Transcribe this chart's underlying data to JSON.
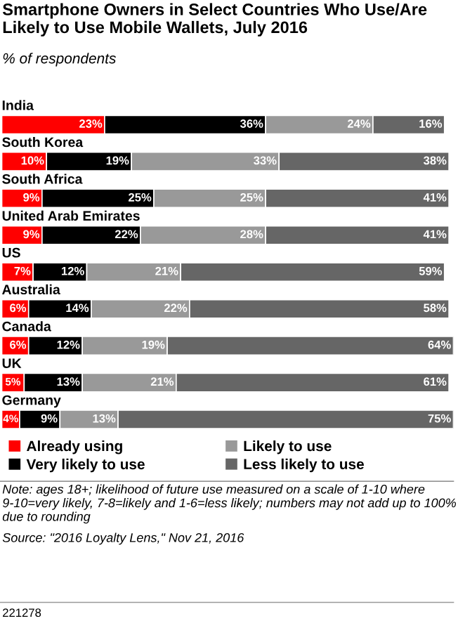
{
  "chart_data": {
    "type": "bar",
    "orientation": "horizontal",
    "stacked": true,
    "title": "Smartphone Owners in Select Countries Who Use/Are Likely to Use Mobile Wallets, July 2016",
    "subtitle": "% of respondents",
    "categories": [
      "India",
      "South Korea",
      "South Africa",
      "United Arab Emirates",
      "US",
      "Australia",
      "Canada",
      "UK",
      "Germany"
    ],
    "series": [
      {
        "name": "Already using",
        "color": "#ff0000",
        "values": [
          23,
          10,
          9,
          9,
          7,
          6,
          6,
          5,
          4
        ],
        "value_labels": [
          "23%",
          "10%",
          "9%",
          "9%",
          "7%",
          "6%",
          "6%",
          "5%",
          "4%"
        ]
      },
      {
        "name": "Very likely to use",
        "color": "#000000",
        "values": [
          36,
          19,
          25,
          22,
          12,
          14,
          12,
          13,
          9
        ],
        "value_labels": [
          "36%",
          "19%",
          "25%",
          "22%",
          "12%",
          "14%",
          "12%",
          "13%",
          "9%"
        ]
      },
      {
        "name": "Likely to use",
        "color": "#999999",
        "values": [
          24,
          33,
          25,
          28,
          21,
          22,
          19,
          21,
          13
        ],
        "value_labels": [
          "24%",
          "33%",
          "25%",
          "28%",
          "21%",
          "22%",
          "19%",
          "21%",
          "13%"
        ]
      },
      {
        "name": "Less likely to use",
        "color": "#666666",
        "values": [
          16,
          38,
          41,
          41,
          59,
          58,
          64,
          61,
          75
        ],
        "value_labels": [
          "16%",
          "38%",
          "41%",
          "41%",
          "59%",
          "58%",
          "64%",
          "61%",
          "75%"
        ]
      }
    ],
    "legend": "bottom",
    "annotations": [
      "Note: ages 18+; likelihood of future use measured on a scale of 1-10 where 9-10=very likely, 7-8=likely and 1-6=less likely; numbers may not add up to 100% due to rounding",
      "Source: \"2016 Loyalty Lens,\" Nov 21, 2016",
      "221278"
    ]
  }
}
